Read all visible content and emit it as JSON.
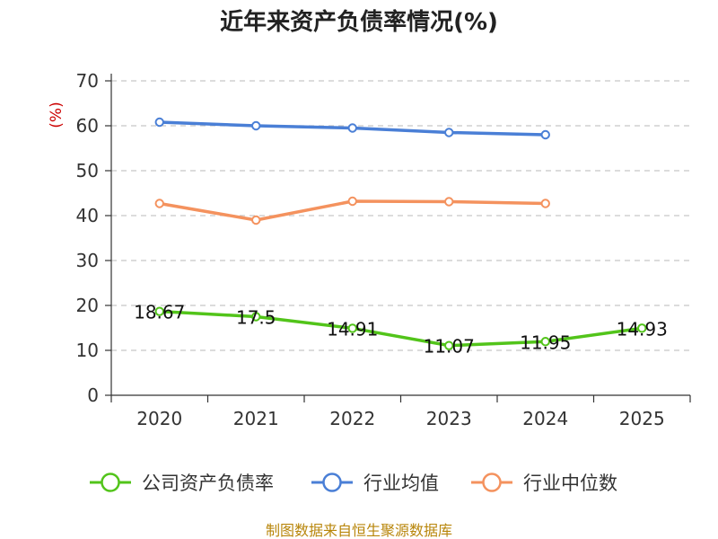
{
  "chart_data": {
    "type": "line",
    "title": "近年来资产负债率情况(%)",
    "ylabel": "(%)",
    "xlabel": "",
    "categories": [
      "2020",
      "2021",
      "2022",
      "2023",
      "2024",
      "2025"
    ],
    "ylim": [
      0,
      70
    ],
    "yticks": [
      0,
      10,
      20,
      30,
      40,
      50,
      60,
      70
    ],
    "grid": true,
    "legend_position": "bottom",
    "series": [
      {
        "name": "公司资产负债率",
        "color": "#52c41a",
        "values": [
          18.67,
          17.5,
          14.91,
          11.07,
          11.95,
          14.93
        ],
        "labels": [
          "18.67",
          "17.5",
          "14.91",
          "11.07",
          "11.95",
          "14.93"
        ]
      },
      {
        "name": "行业均值",
        "color": "#4a7fd6",
        "values": [
          60.8,
          60.0,
          59.5,
          58.5,
          58.0,
          null
        ]
      },
      {
        "name": "行业中位数",
        "color": "#f4925e",
        "values": [
          42.7,
          39.0,
          43.2,
          43.1,
          42.7,
          null
        ]
      }
    ]
  },
  "source": "制图数据来自恒生聚源数据库"
}
